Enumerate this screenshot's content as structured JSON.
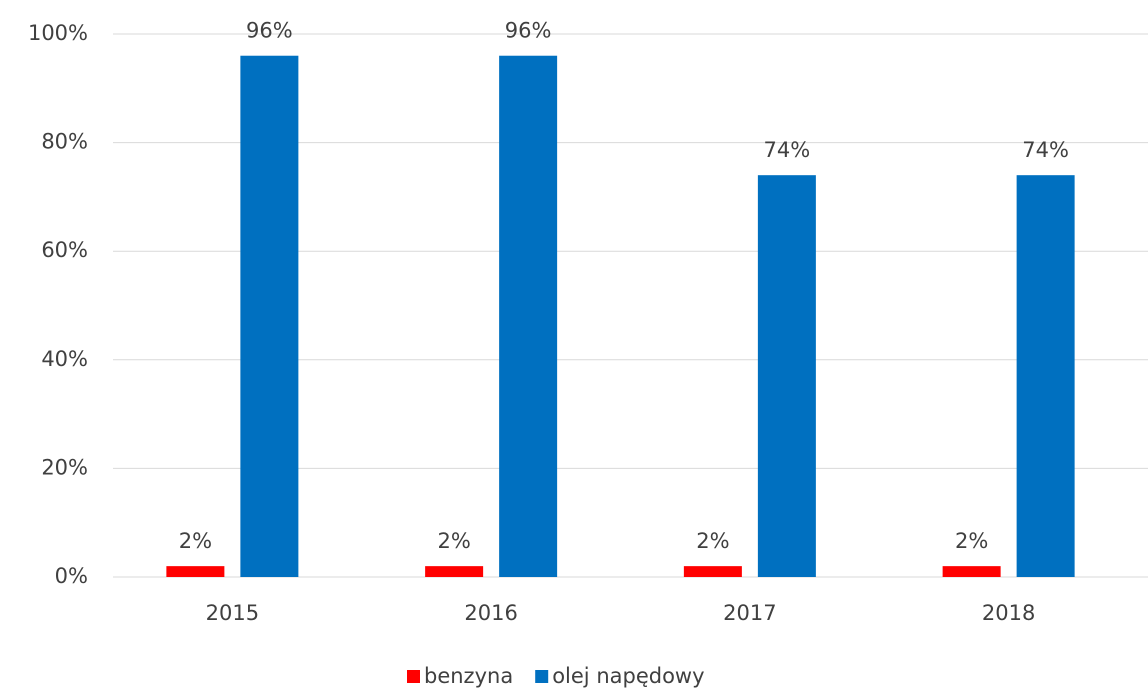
{
  "chart_data": {
    "type": "bar",
    "categories": [
      "2015",
      "2016",
      "2017",
      "2018"
    ],
    "series": [
      {
        "name": "benzyna",
        "color": "#ff0000",
        "values": [
          2,
          2,
          2,
          2
        ],
        "value_labels": [
          "2%",
          "2%",
          "2%",
          "2%"
        ]
      },
      {
        "name": "olej napędowy",
        "color": "#0070c0",
        "values": [
          96,
          96,
          74,
          74
        ],
        "value_labels": [
          "96%",
          "96%",
          "74%",
          "74%"
        ]
      }
    ],
    "ylim": [
      0,
      100
    ],
    "yticks": [
      {
        "value": 0,
        "label": "0%"
      },
      {
        "value": 20,
        "label": "20%"
      },
      {
        "value": 40,
        "label": "40%"
      },
      {
        "value": 60,
        "label": "60%"
      },
      {
        "value": 80,
        "label": "80%"
      },
      {
        "value": 100,
        "label": "100%"
      }
    ],
    "grid": true,
    "legend": "bottom"
  }
}
